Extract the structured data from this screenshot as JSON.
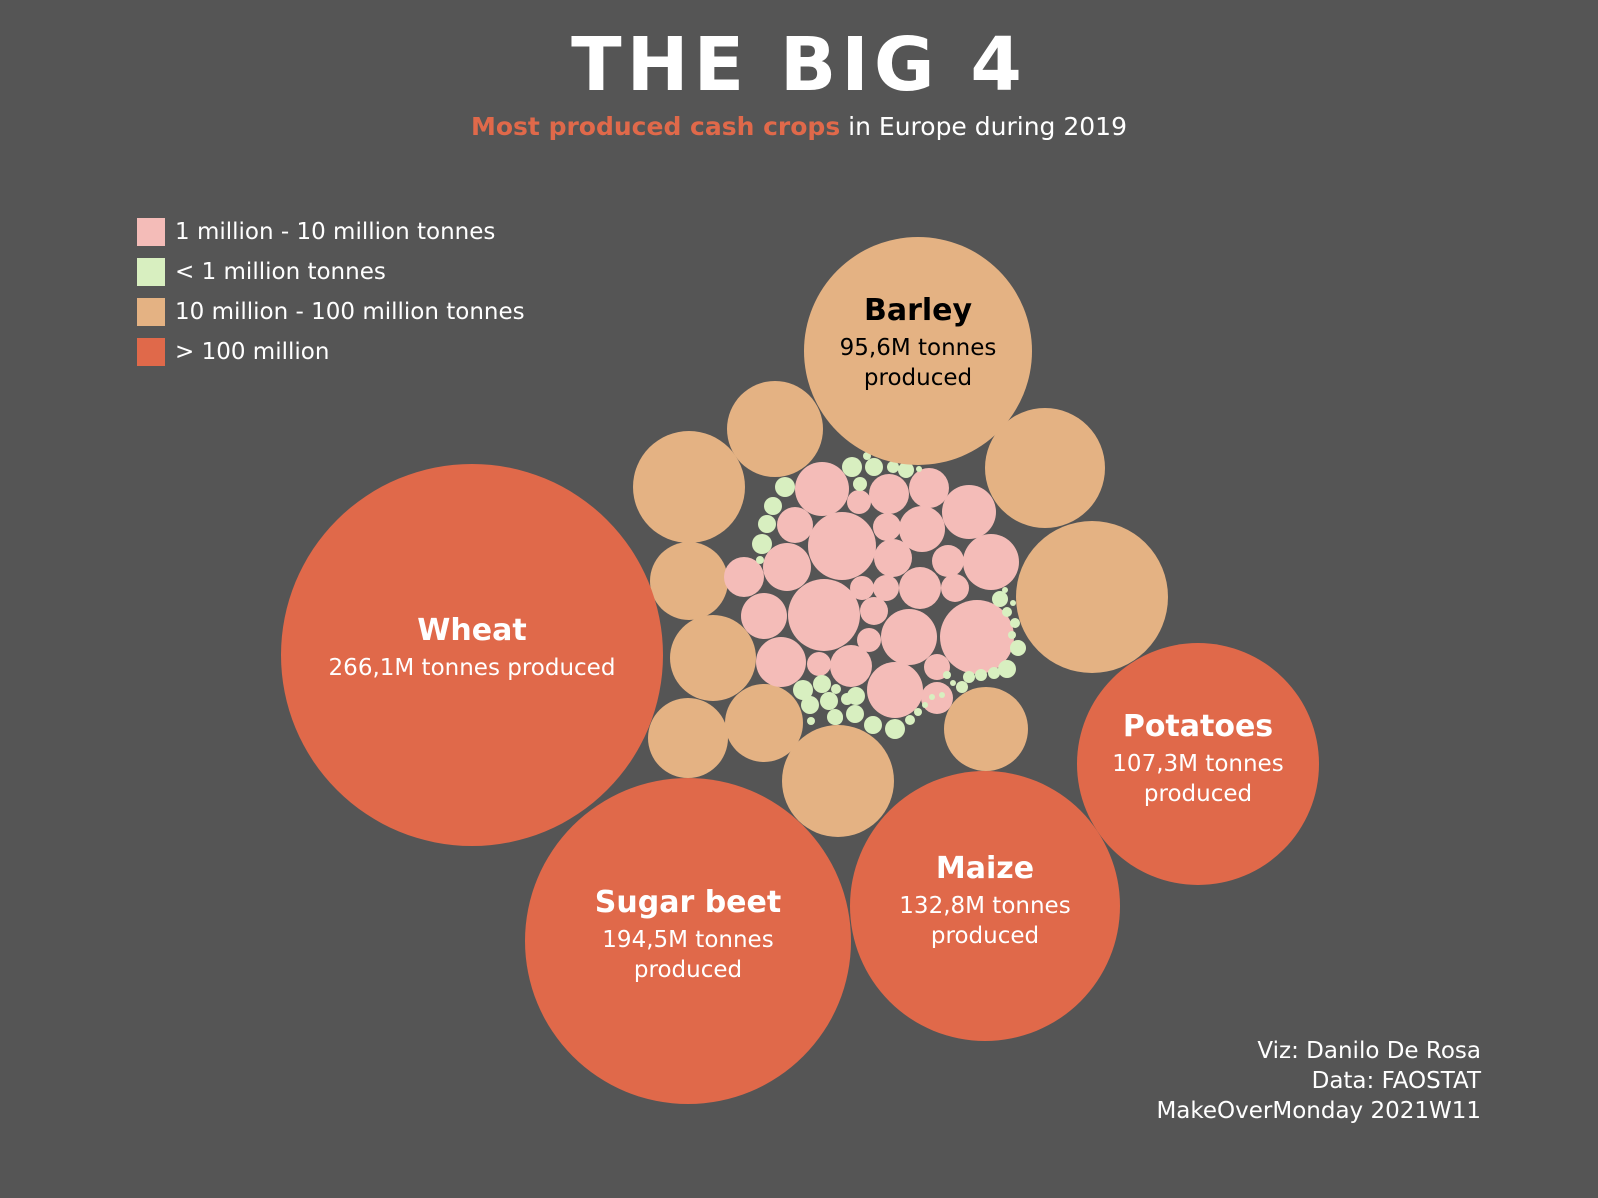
{
  "title": "THE BIG 4",
  "subtitle": {
    "highlight": "Most produced cash crops",
    "rest": " in Europe during 2019"
  },
  "legend": [
    {
      "label": "1 million - 10 million tonnes",
      "color": "#f4bcb8"
    },
    {
      "label": "< 1 million tonnes",
      "color": "#d8efc0"
    },
    {
      "label": "10 million - 100 million tonnes",
      "color": "#e4b283"
    },
    {
      "label": "> 100 million",
      "color": "#e0694a"
    }
  ],
  "credits": {
    "line1": "Viz: Danilo De Rosa",
    "line2": "Data: FAOSTAT",
    "line3": "MakeOverMonday 2021W11"
  },
  "chart_data": {
    "type": "bubble",
    "unit": "million tonnes",
    "labeled_crops": [
      {
        "name": "Wheat",
        "value": 266.1,
        "caption": [
          "266,1M tonnes produced"
        ],
        "category": "> 100 million"
      },
      {
        "name": "Sugar beet",
        "value": 194.5,
        "caption": [
          "194,5M tonnes",
          "produced"
        ],
        "category": "> 100 million"
      },
      {
        "name": "Maize",
        "value": 132.8,
        "caption": [
          "132,8M tonnes",
          "produced"
        ],
        "category": "> 100 million"
      },
      {
        "name": "Potatoes",
        "value": 107.3,
        "caption": [
          "107,3M tonnes",
          "produced"
        ],
        "category": "> 100 million"
      },
      {
        "name": "Barley",
        "value": 95.6,
        "caption": [
          "95,6M tonnes",
          "produced"
        ],
        "category": "10 million - 100 million tonnes"
      }
    ],
    "unlabeled_counts": {
      "10 million - 100 million tonnes": 12,
      "1 million - 10 million tonnes": 40,
      "< 1 million tonnes": 48
    }
  }
}
